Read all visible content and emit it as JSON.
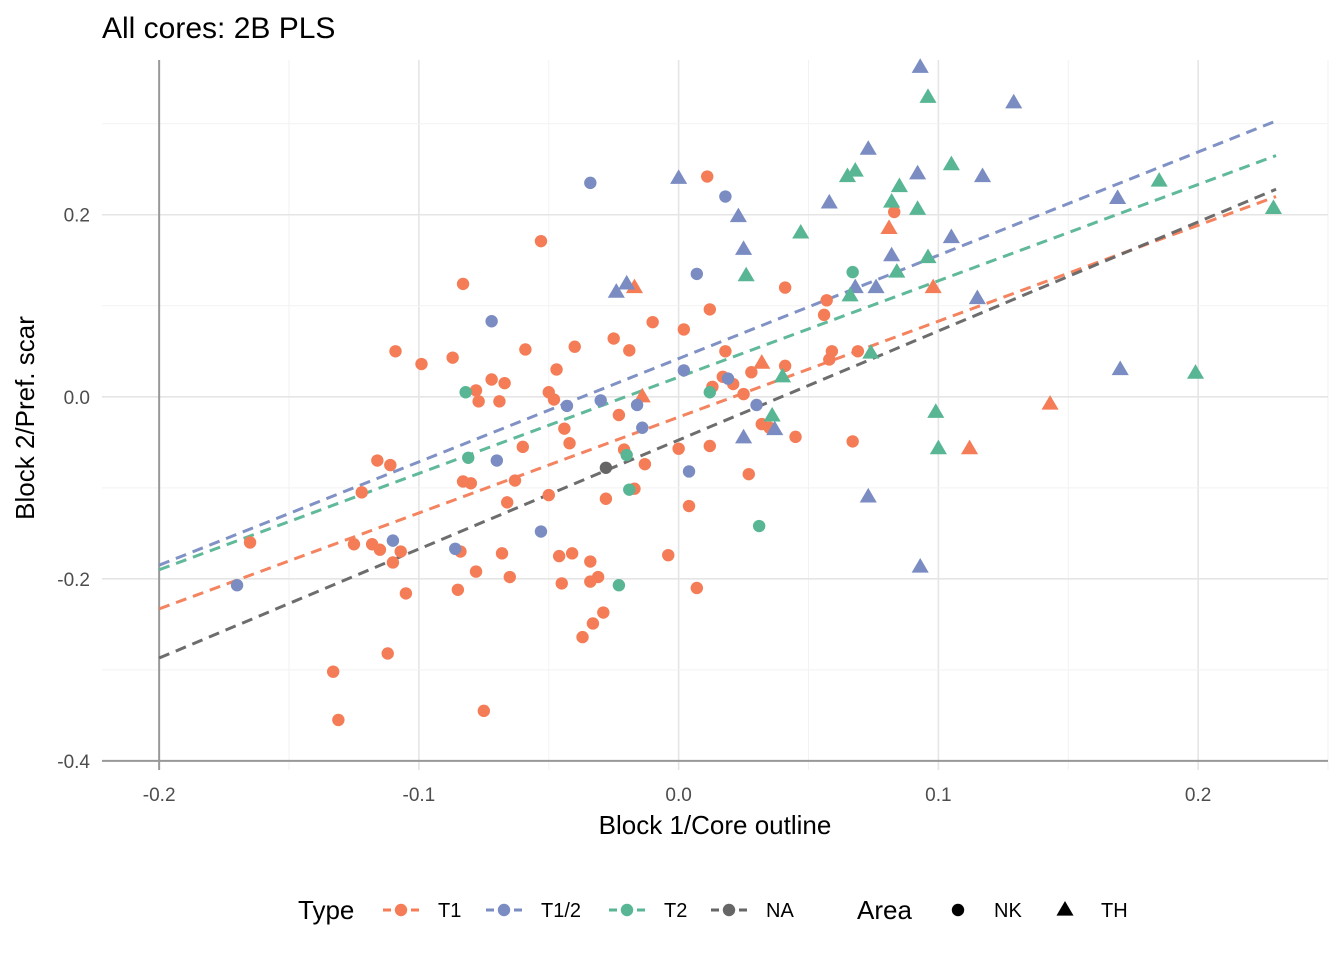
{
  "chart_data": {
    "type": "scatter",
    "title": "All cores: 2B PLS",
    "xlabel": "Block 1/Core outline",
    "ylabel": "Block 2/Pref. scar",
    "xlim": [
      -0.222,
      0.25
    ],
    "ylim": [
      -0.41,
      0.37
    ],
    "x_ticks": [
      -0.2,
      -0.1,
      0.0,
      0.1,
      0.2
    ],
    "x_tick_labels": [
      "-0.2",
      "-0.1",
      "0.0",
      "0.1",
      "0.2"
    ],
    "y_ticks": [
      -0.4,
      -0.2,
      0.0,
      0.2
    ],
    "y_tick_labels": [
      "-0.4",
      "-0.2",
      "0.0",
      "0.2"
    ],
    "grid": true,
    "reference_lines": {
      "x": -0.2,
      "y": -0.4
    },
    "legend_position": "bottom",
    "legend": {
      "type_title": "Type",
      "type_entries": [
        {
          "label": "T1",
          "color": "#F47D57"
        },
        {
          "label": "T1/2",
          "color": "#7A8CC2"
        },
        {
          "label": "T2",
          "color": "#58B694"
        },
        {
          "label": "NA",
          "color": "#666666"
        }
      ],
      "area_title": "Area",
      "area_entries": [
        {
          "label": "NK",
          "shape": "circle"
        },
        {
          "label": "TH",
          "shape": "triangle"
        }
      ]
    },
    "series": [
      {
        "name": "T1",
        "color": "#F47D57",
        "trend": [
          [
            -0.2,
            -0.233
          ],
          [
            0.23,
            0.22
          ]
        ],
        "points": {
          "NK": [
            [
              -0.165,
              -0.16
            ],
            [
              -0.133,
              -0.302
            ],
            [
              -0.131,
              -0.355
            ],
            [
              -0.125,
              -0.162
            ],
            [
              -0.122,
              -0.105
            ],
            [
              -0.118,
              -0.162
            ],
            [
              -0.116,
              -0.07
            ],
            [
              -0.115,
              -0.168
            ],
            [
              -0.112,
              -0.282
            ],
            [
              -0.111,
              -0.075
            ],
            [
              -0.11,
              -0.182
            ],
            [
              -0.109,
              0.05
            ],
            [
              -0.107,
              -0.17
            ],
            [
              -0.105,
              -0.216
            ],
            [
              -0.099,
              0.036
            ],
            [
              -0.087,
              0.043
            ],
            [
              -0.085,
              -0.212
            ],
            [
              -0.084,
              -0.17
            ],
            [
              -0.083,
              0.124
            ],
            [
              -0.083,
              -0.093
            ],
            [
              -0.08,
              -0.095
            ],
            [
              -0.078,
              -0.192
            ],
            [
              -0.078,
              0.007
            ],
            [
              -0.077,
              -0.005
            ],
            [
              -0.075,
              -0.345
            ],
            [
              -0.072,
              0.019
            ],
            [
              -0.069,
              -0.005
            ],
            [
              -0.068,
              -0.172
            ],
            [
              -0.067,
              0.015
            ],
            [
              -0.066,
              -0.116
            ],
            [
              -0.065,
              -0.198
            ],
            [
              -0.063,
              -0.092
            ],
            [
              -0.06,
              -0.055
            ],
            [
              -0.059,
              0.052
            ],
            [
              -0.053,
              0.171
            ],
            [
              -0.05,
              0.005
            ],
            [
              -0.05,
              -0.108
            ],
            [
              -0.048,
              -0.003
            ],
            [
              -0.047,
              0.03
            ],
            [
              -0.046,
              -0.175
            ],
            [
              -0.045,
              -0.205
            ],
            [
              -0.044,
              -0.035
            ],
            [
              -0.042,
              -0.051
            ],
            [
              -0.041,
              -0.172
            ],
            [
              -0.04,
              0.055
            ],
            [
              -0.037,
              -0.264
            ],
            [
              -0.034,
              -0.181
            ],
            [
              -0.034,
              -0.203
            ],
            [
              -0.033,
              -0.249
            ],
            [
              -0.031,
              -0.198
            ],
            [
              -0.029,
              -0.237
            ],
            [
              -0.028,
              -0.112
            ],
            [
              -0.025,
              0.064
            ],
            [
              -0.023,
              -0.02
            ],
            [
              -0.021,
              -0.058
            ],
            [
              -0.019,
              0.051
            ],
            [
              -0.017,
              -0.101
            ],
            [
              -0.013,
              -0.074
            ],
            [
              -0.01,
              0.082
            ],
            [
              -0.004,
              -0.174
            ],
            [
              0.0,
              -0.057
            ],
            [
              0.002,
              0.074
            ],
            [
              0.004,
              -0.12
            ],
            [
              0.007,
              -0.21
            ],
            [
              0.011,
              0.242
            ],
            [
              0.012,
              -0.054
            ],
            [
              0.012,
              0.096
            ],
            [
              0.013,
              0.011
            ],
            [
              0.017,
              0.022
            ],
            [
              0.018,
              0.05
            ],
            [
              0.021,
              0.014
            ],
            [
              0.025,
              0.003
            ],
            [
              0.027,
              -0.085
            ],
            [
              0.028,
              0.027
            ],
            [
              0.032,
              -0.03
            ],
            [
              0.035,
              -0.034
            ],
            [
              0.041,
              0.12
            ],
            [
              0.041,
              0.034
            ],
            [
              0.045,
              -0.044
            ],
            [
              0.056,
              0.09
            ],
            [
              0.057,
              0.106
            ],
            [
              0.058,
              0.041
            ],
            [
              0.059,
              0.05
            ],
            [
              0.067,
              -0.049
            ],
            [
              0.069,
              0.05
            ],
            [
              0.083,
              0.203
            ]
          ],
          "TH": [
            [
              -0.017,
              0.12
            ],
            [
              -0.014,
              0.0
            ],
            [
              0.032,
              0.037
            ],
            [
              0.081,
              0.185
            ],
            [
              0.098,
              0.12
            ],
            [
              0.112,
              -0.057
            ],
            [
              0.143,
              -0.008
            ]
          ]
        }
      },
      {
        "name": "T1/2",
        "color": "#7A8CC2",
        "trend": [
          [
            -0.2,
            -0.185
          ],
          [
            0.23,
            0.303
          ]
        ],
        "points": {
          "NK": [
            [
              -0.17,
              -0.207
            ],
            [
              -0.11,
              -0.158
            ],
            [
              -0.086,
              -0.167
            ],
            [
              -0.072,
              0.083
            ],
            [
              -0.07,
              -0.07
            ],
            [
              -0.053,
              -0.148
            ],
            [
              -0.043,
              -0.01
            ],
            [
              -0.034,
              0.235
            ],
            [
              -0.03,
              -0.004
            ],
            [
              -0.014,
              -0.034
            ],
            [
              -0.016,
              -0.009
            ],
            [
              0.002,
              0.029
            ],
            [
              0.004,
              -0.082
            ],
            [
              0.007,
              0.135
            ],
            [
              0.019,
              0.02
            ],
            [
              0.018,
              0.22
            ],
            [
              0.03,
              -0.009
            ]
          ],
          "TH": [
            [
              -0.024,
              0.115
            ],
            [
              -0.02,
              0.124
            ],
            [
              0.0,
              0.24
            ],
            [
              0.023,
              0.198
            ],
            [
              0.025,
              0.162
            ],
            [
              0.025,
              -0.045
            ],
            [
              0.037,
              -0.036
            ],
            [
              0.058,
              0.213
            ],
            [
              0.068,
              0.12
            ],
            [
              0.073,
              0.272
            ],
            [
              0.073,
              -0.11
            ],
            [
              0.076,
              0.12
            ],
            [
              0.082,
              0.155
            ],
            [
              0.092,
              0.245
            ],
            [
              0.093,
              0.362
            ],
            [
              0.093,
              -0.187
            ],
            [
              0.105,
              0.175
            ],
            [
              0.115,
              0.108
            ],
            [
              0.117,
              0.242
            ],
            [
              0.129,
              0.323
            ],
            [
              0.169,
              0.218
            ],
            [
              0.17,
              0.03
            ]
          ]
        }
      },
      {
        "name": "T2",
        "color": "#58B694",
        "trend": [
          [
            -0.2,
            -0.19
          ],
          [
            0.23,
            0.265
          ]
        ],
        "points": {
          "NK": [
            [
              -0.082,
              0.005
            ],
            [
              -0.081,
              -0.067
            ],
            [
              -0.023,
              -0.207
            ],
            [
              -0.02,
              -0.064
            ],
            [
              -0.019,
              -0.102
            ],
            [
              0.012,
              0.005
            ],
            [
              0.031,
              -0.142
            ],
            [
              0.067,
              0.137
            ]
          ],
          "TH": [
            [
              0.026,
              0.133
            ],
            [
              0.036,
              -0.021
            ],
            [
              0.04,
              0.022
            ],
            [
              0.047,
              0.18
            ],
            [
              0.065,
              0.242
            ],
            [
              0.066,
              0.111
            ],
            [
              0.068,
              0.248
            ],
            [
              0.074,
              0.048
            ],
            [
              0.082,
              0.214
            ],
            [
              0.084,
              0.137
            ],
            [
              0.085,
              0.231
            ],
            [
              0.092,
              0.206
            ],
            [
              0.096,
              0.329
            ],
            [
              0.096,
              0.153
            ],
            [
              0.099,
              -0.017
            ],
            [
              0.1,
              -0.057
            ],
            [
              0.105,
              0.255
            ],
            [
              0.185,
              0.237
            ],
            [
              0.199,
              0.026
            ],
            [
              0.229,
              0.207
            ]
          ]
        }
      },
      {
        "name": "NA",
        "color": "#666666",
        "trend": [
          [
            -0.2,
            -0.287
          ],
          [
            0.23,
            0.228
          ]
        ],
        "points": {
          "NK": [
            [
              -0.028,
              -0.078
            ]
          ],
          "TH": []
        }
      }
    ]
  }
}
